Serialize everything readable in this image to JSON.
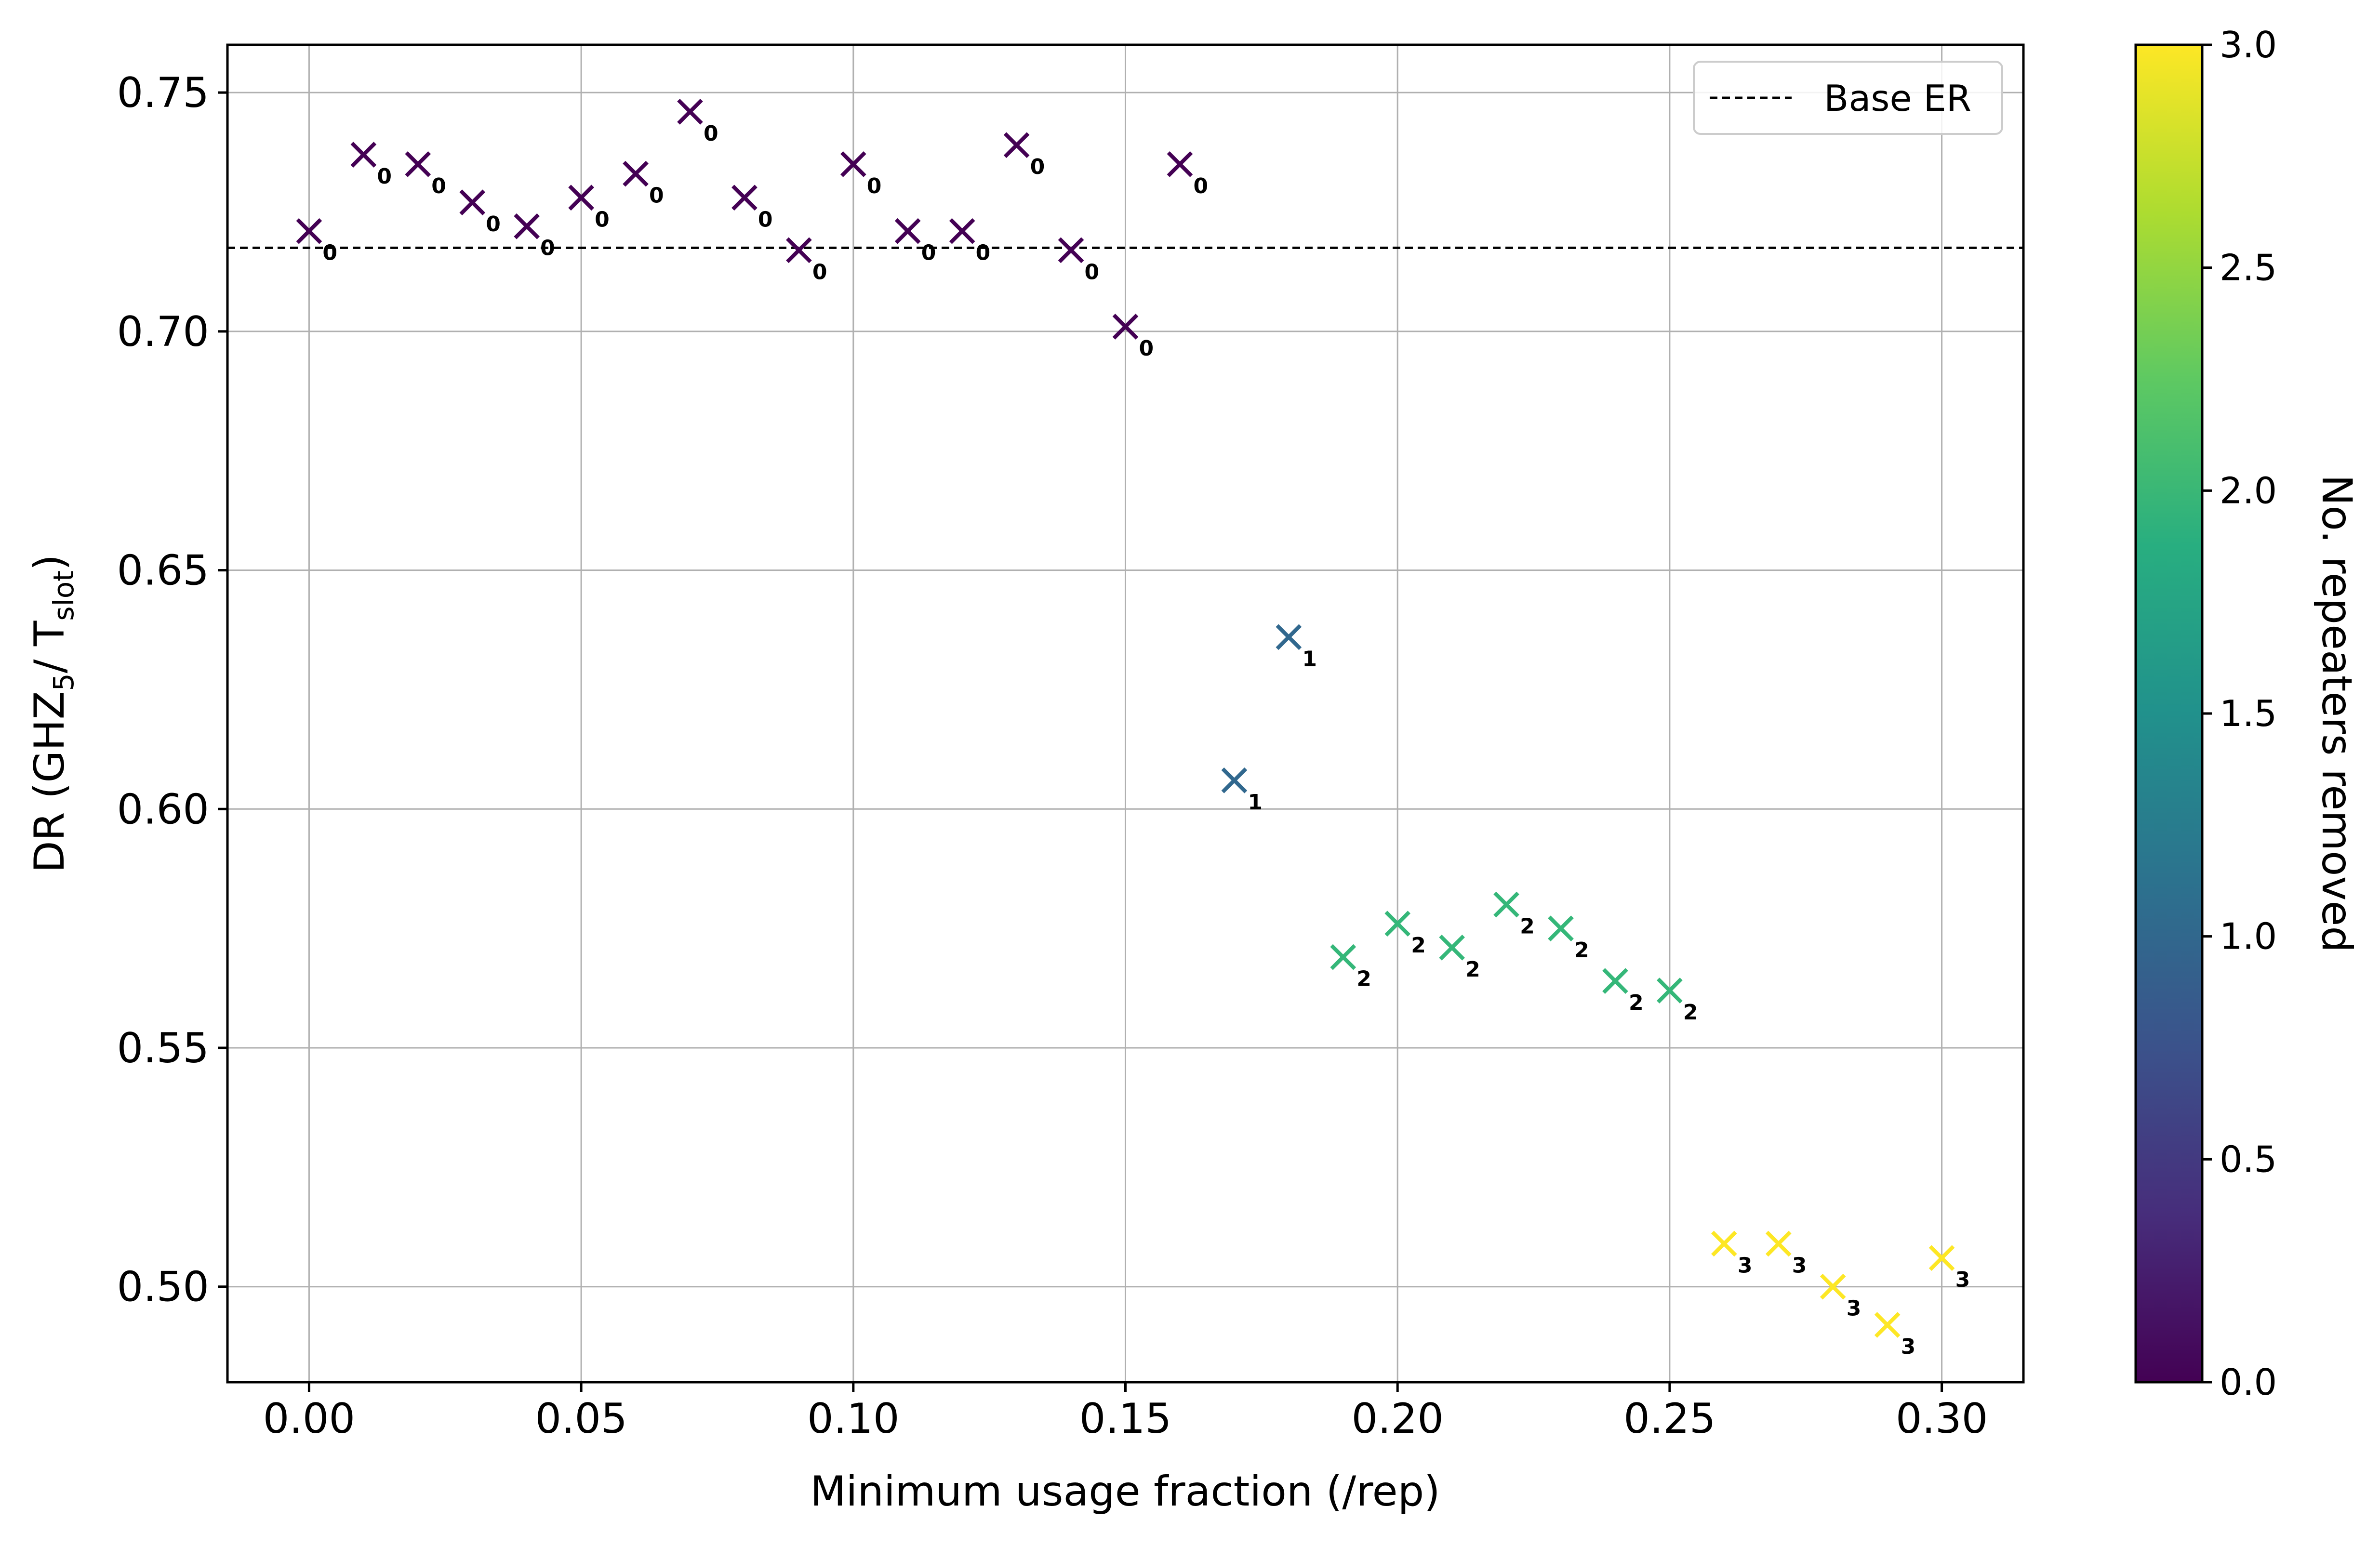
{
  "chart_data": {
    "type": "scatter",
    "xlabel": "Minimum usage fraction (/rep)",
    "ylabel_parts": [
      "DR (GHZ",
      "5",
      "/ T",
      "slot",
      ")"
    ],
    "xlim": [
      -0.015,
      0.315
    ],
    "ylim": [
      0.48,
      0.76
    ],
    "xticks": [
      "0.00",
      "0.05",
      "0.10",
      "0.15",
      "0.20",
      "0.25",
      "0.30"
    ],
    "yticks": [
      "0.50",
      "0.55",
      "0.60",
      "0.65",
      "0.70",
      "0.75"
    ],
    "grid": true,
    "legend": {
      "position": "top-right",
      "entries": [
        "Base ER"
      ]
    },
    "baseline": {
      "name": "Base ER",
      "y": 0.7175,
      "style": "dashed",
      "color": "#000000"
    },
    "colorbar": {
      "label": "No. repeaters removed",
      "range": [
        0.0,
        3.0
      ],
      "ticks": [
        "0.0",
        "0.5",
        "1.0",
        "1.5",
        "2.0",
        "2.5",
        "3.0"
      ],
      "colormap": "viridis"
    },
    "marker": "x",
    "points": [
      {
        "x": 0.0,
        "y": 0.721,
        "label": "0",
        "c": 0
      },
      {
        "x": 0.01,
        "y": 0.737,
        "label": "0",
        "c": 0
      },
      {
        "x": 0.02,
        "y": 0.735,
        "label": "0",
        "c": 0
      },
      {
        "x": 0.03,
        "y": 0.727,
        "label": "0",
        "c": 0
      },
      {
        "x": 0.04,
        "y": 0.722,
        "label": "0",
        "c": 0
      },
      {
        "x": 0.05,
        "y": 0.728,
        "label": "0",
        "c": 0
      },
      {
        "x": 0.06,
        "y": 0.733,
        "label": "0",
        "c": 0
      },
      {
        "x": 0.07,
        "y": 0.746,
        "label": "0",
        "c": 0
      },
      {
        "x": 0.08,
        "y": 0.728,
        "label": "0",
        "c": 0
      },
      {
        "x": 0.09,
        "y": 0.717,
        "label": "0",
        "c": 0
      },
      {
        "x": 0.1,
        "y": 0.735,
        "label": "0",
        "c": 0
      },
      {
        "x": 0.11,
        "y": 0.721,
        "label": "0",
        "c": 0
      },
      {
        "x": 0.12,
        "y": 0.721,
        "label": "0",
        "c": 0
      },
      {
        "x": 0.13,
        "y": 0.739,
        "label": "0",
        "c": 0
      },
      {
        "x": 0.14,
        "y": 0.717,
        "label": "0",
        "c": 0
      },
      {
        "x": 0.15,
        "y": 0.701,
        "label": "0",
        "c": 0
      },
      {
        "x": 0.16,
        "y": 0.735,
        "label": "0",
        "c": 0
      },
      {
        "x": 0.17,
        "y": 0.606,
        "label": "1",
        "c": 1
      },
      {
        "x": 0.18,
        "y": 0.636,
        "label": "1",
        "c": 1
      },
      {
        "x": 0.19,
        "y": 0.569,
        "label": "2",
        "c": 2
      },
      {
        "x": 0.2,
        "y": 0.576,
        "label": "2",
        "c": 2
      },
      {
        "x": 0.21,
        "y": 0.571,
        "label": "2",
        "c": 2
      },
      {
        "x": 0.22,
        "y": 0.58,
        "label": "2",
        "c": 2
      },
      {
        "x": 0.23,
        "y": 0.575,
        "label": "2",
        "c": 2
      },
      {
        "x": 0.24,
        "y": 0.564,
        "label": "2",
        "c": 2
      },
      {
        "x": 0.25,
        "y": 0.562,
        "label": "2",
        "c": 2
      },
      {
        "x": 0.26,
        "y": 0.509,
        "label": "3",
        "c": 3
      },
      {
        "x": 0.27,
        "y": 0.509,
        "label": "3",
        "c": 3
      },
      {
        "x": 0.28,
        "y": 0.5,
        "label": "3",
        "c": 3
      },
      {
        "x": 0.29,
        "y": 0.492,
        "label": "3",
        "c": 3
      },
      {
        "x": 0.3,
        "y": 0.506,
        "label": "3",
        "c": 3
      }
    ],
    "colors": {
      "0": "#440154",
      "1": "#31688e",
      "2": "#35b779",
      "3": "#fde725",
      "grid": "#b0b0b0",
      "axis": "#000000",
      "point_label": "#000000"
    }
  }
}
